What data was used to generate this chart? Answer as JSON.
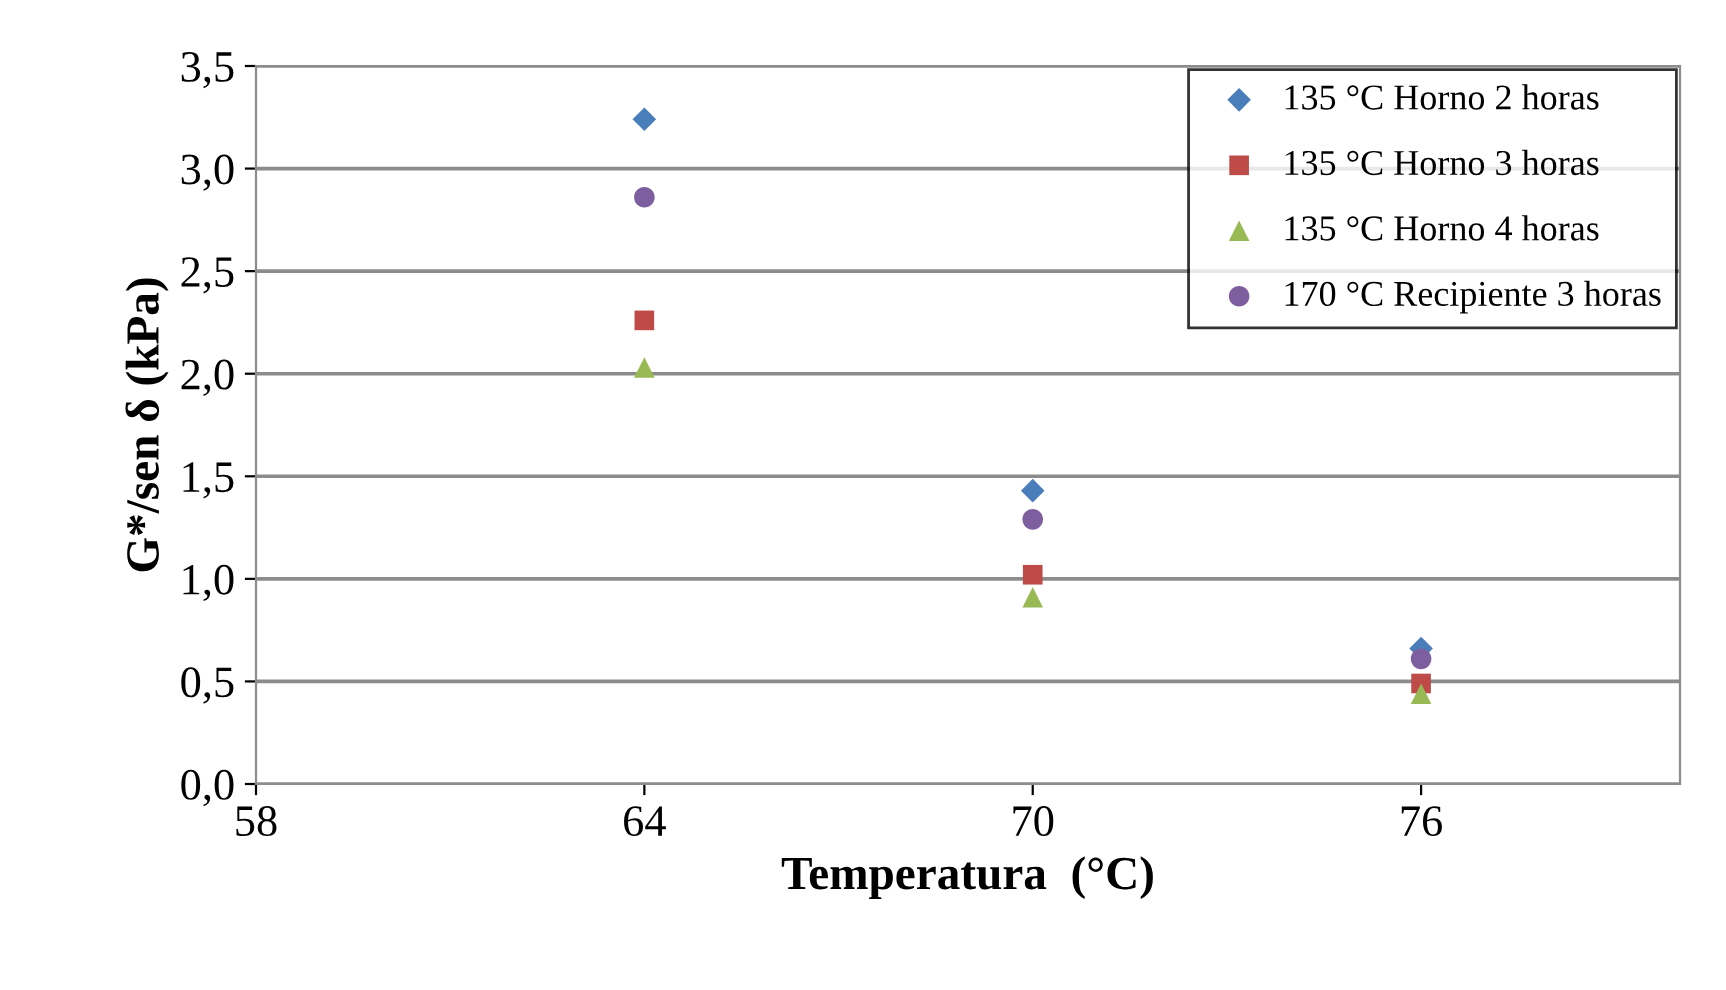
{
  "chart_data": {
    "type": "scatter",
    "xlabel": "Temperatura  (°C)",
    "ylabel": "G*/sen δ (kPa)",
    "x": [
      64,
      70,
      76
    ],
    "series": [
      {
        "name": "135 °C Horno 2 horas",
        "color": "#4a7ebb",
        "marker": "diamond",
        "values": [
          3.24,
          1.43,
          0.66
        ]
      },
      {
        "name": "135 °C Horno 3 horas",
        "color": "#be4b48",
        "marker": "square",
        "values": [
          2.26,
          1.02,
          0.49
        ]
      },
      {
        "name": "135 °C Horno 4 horas",
        "color": "#98b954",
        "marker": "triangle",
        "values": [
          2.03,
          0.91,
          0.44
        ]
      },
      {
        "name": "170 °C Recipiente 3 horas",
        "color": "#7d5fa0",
        "marker": "circle",
        "values": [
          2.86,
          1.29,
          0.61
        ]
      }
    ],
    "xlim": [
      58,
      80
    ],
    "xticks": [
      58,
      64,
      70,
      76
    ],
    "ylim": [
      0,
      3.5
    ],
    "yticks": [
      {
        "value": 0,
        "label": "0,0"
      },
      {
        "value": 0.5,
        "label": "0,5"
      },
      {
        "value": 1,
        "label": "1,0"
      },
      {
        "value": 1.5,
        "label": "1,5"
      },
      {
        "value": 2,
        "label": "2,0"
      },
      {
        "value": 2.5,
        "label": "2,5"
      },
      {
        "value": 3,
        "label": "3,0"
      },
      {
        "value": 3.5,
        "label": "3,5"
      }
    ],
    "grid": "y",
    "legend": "top right"
  }
}
